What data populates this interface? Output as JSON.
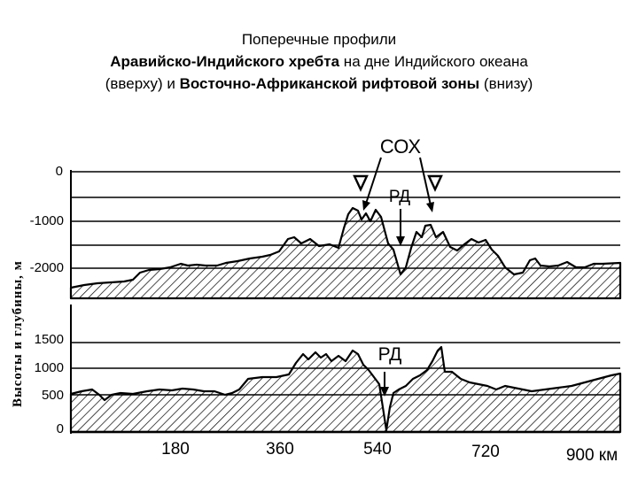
{
  "caption": {
    "line1": "Поперечные профили",
    "line2_bold": "Аравийско-Индийского хребта",
    "line2_rest": " на дне Индийского океана",
    "line3_pre": "(вверху) и ",
    "line3_bold": "Восточно-Африканской рифтовой зоны",
    "line3_post": " (внизу)"
  },
  "y_axis_title": "Высоты и глубины, м",
  "top_panel": {
    "label_cox": "СОХ",
    "label_rd": "РД",
    "ticks": [
      "0",
      "-1000",
      "-2000"
    ]
  },
  "bottom_panel": {
    "label_rd": "РД",
    "ticks": [
      "1500",
      "1000",
      "500",
      "0"
    ]
  },
  "x_axis": {
    "ticks": [
      "180",
      "360",
      "540",
      "720",
      "900 км"
    ]
  }
}
